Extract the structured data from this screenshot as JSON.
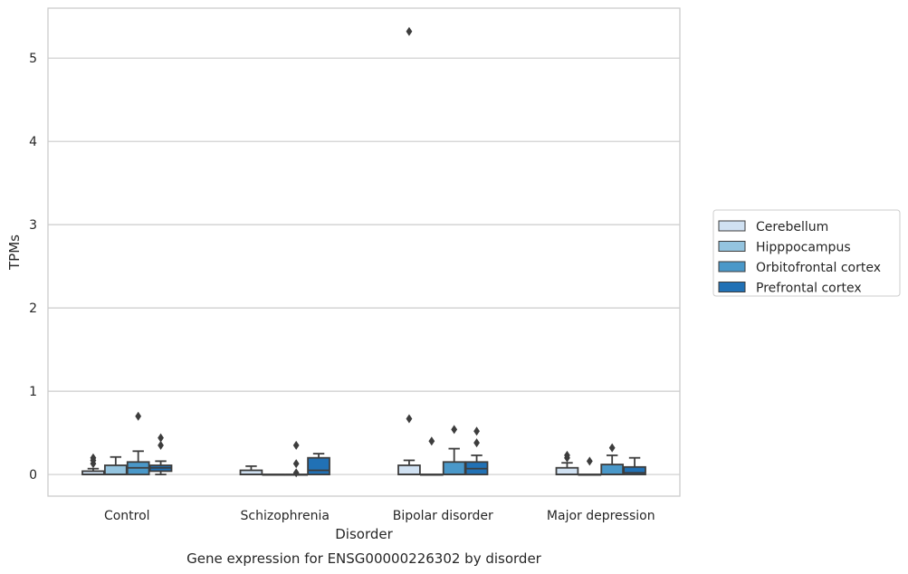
{
  "chart_data": {
    "type": "box",
    "title": "",
    "caption": "Gene expression for ENSG00000226302 by disorder",
    "xlabel": "Disorder",
    "ylabel": "TPMs",
    "ylim": [
      -0.26,
      5.6
    ],
    "yticks": [
      0,
      1,
      2,
      3,
      4,
      5
    ],
    "grid": "horizontal",
    "legend_position": "right",
    "categories": [
      "Control",
      "Schizophrenia",
      "Bipolar disorder",
      "Major depression"
    ],
    "series": [
      {
        "name": "Cerebellum",
        "color": "#d0e1f2",
        "boxes": [
          {
            "q1": 0.0,
            "median": 0.0,
            "q3": 0.04,
            "whislo": 0.0,
            "whishi": 0.07,
            "fliers": [
              0.13,
              0.17,
              0.2
            ]
          },
          {
            "q1": 0.0,
            "median": 0.0,
            "q3": 0.05,
            "whislo": 0.0,
            "whishi": 0.1,
            "fliers": []
          },
          {
            "q1": 0.0,
            "median": 0.0,
            "q3": 0.11,
            "whislo": 0.0,
            "whishi": 0.17,
            "fliers": [
              0.67,
              5.32
            ]
          },
          {
            "q1": 0.0,
            "median": 0.0,
            "q3": 0.08,
            "whislo": 0.0,
            "whishi": 0.14,
            "fliers": [
              0.2,
              0.23
            ]
          }
        ]
      },
      {
        "name": "Hipppocampus",
        "color": "#94c4df",
        "boxes": [
          {
            "q1": 0.0,
            "median": 0.0,
            "q3": 0.11,
            "whislo": 0.0,
            "whishi": 0.21,
            "fliers": []
          },
          {
            "q1": 0.0,
            "median": 0.0,
            "q3": 0.0,
            "whislo": 0.0,
            "whishi": 0.0,
            "fliers": []
          },
          {
            "q1": 0.0,
            "median": 0.0,
            "q3": 0.0,
            "whislo": 0.0,
            "whishi": 0.0,
            "fliers": [
              0.4
            ]
          },
          {
            "q1": 0.0,
            "median": 0.0,
            "q3": 0.0,
            "whislo": 0.0,
            "whishi": 0.0,
            "fliers": [
              0.16
            ]
          }
        ]
      },
      {
        "name": "Orbitofrontal cortex",
        "color": "#4a98c9",
        "boxes": [
          {
            "q1": 0.0,
            "median": 0.08,
            "q3": 0.15,
            "whislo": 0.0,
            "whishi": 0.28,
            "fliers": [
              0.7
            ]
          },
          {
            "q1": 0.0,
            "median": 0.0,
            "q3": 0.0,
            "whislo": 0.0,
            "whishi": 0.0,
            "fliers": [
              0.02,
              0.13,
              0.35
            ]
          },
          {
            "q1": 0.0,
            "median": 0.0,
            "q3": 0.15,
            "whislo": 0.0,
            "whishi": 0.31,
            "fliers": [
              0.54
            ]
          },
          {
            "q1": 0.0,
            "median": 0.0,
            "q3": 0.12,
            "whislo": 0.0,
            "whishi": 0.23,
            "fliers": [
              0.32
            ]
          }
        ]
      },
      {
        "name": "Prefrontal cortex",
        "color": "#2171b5",
        "boxes": [
          {
            "q1": 0.04,
            "median": 0.08,
            "q3": 0.11,
            "whislo": 0.0,
            "whishi": 0.16,
            "fliers": [
              0.35,
              0.44
            ]
          },
          {
            "q1": 0.0,
            "median": 0.05,
            "q3": 0.2,
            "whislo": 0.0,
            "whishi": 0.25,
            "fliers": []
          },
          {
            "q1": 0.0,
            "median": 0.07,
            "q3": 0.15,
            "whislo": 0.0,
            "whishi": 0.23,
            "fliers": [
              0.38,
              0.52
            ]
          },
          {
            "q1": 0.0,
            "median": 0.02,
            "q3": 0.09,
            "whislo": 0.0,
            "whishi": 0.2,
            "fliers": []
          }
        ]
      }
    ]
  }
}
